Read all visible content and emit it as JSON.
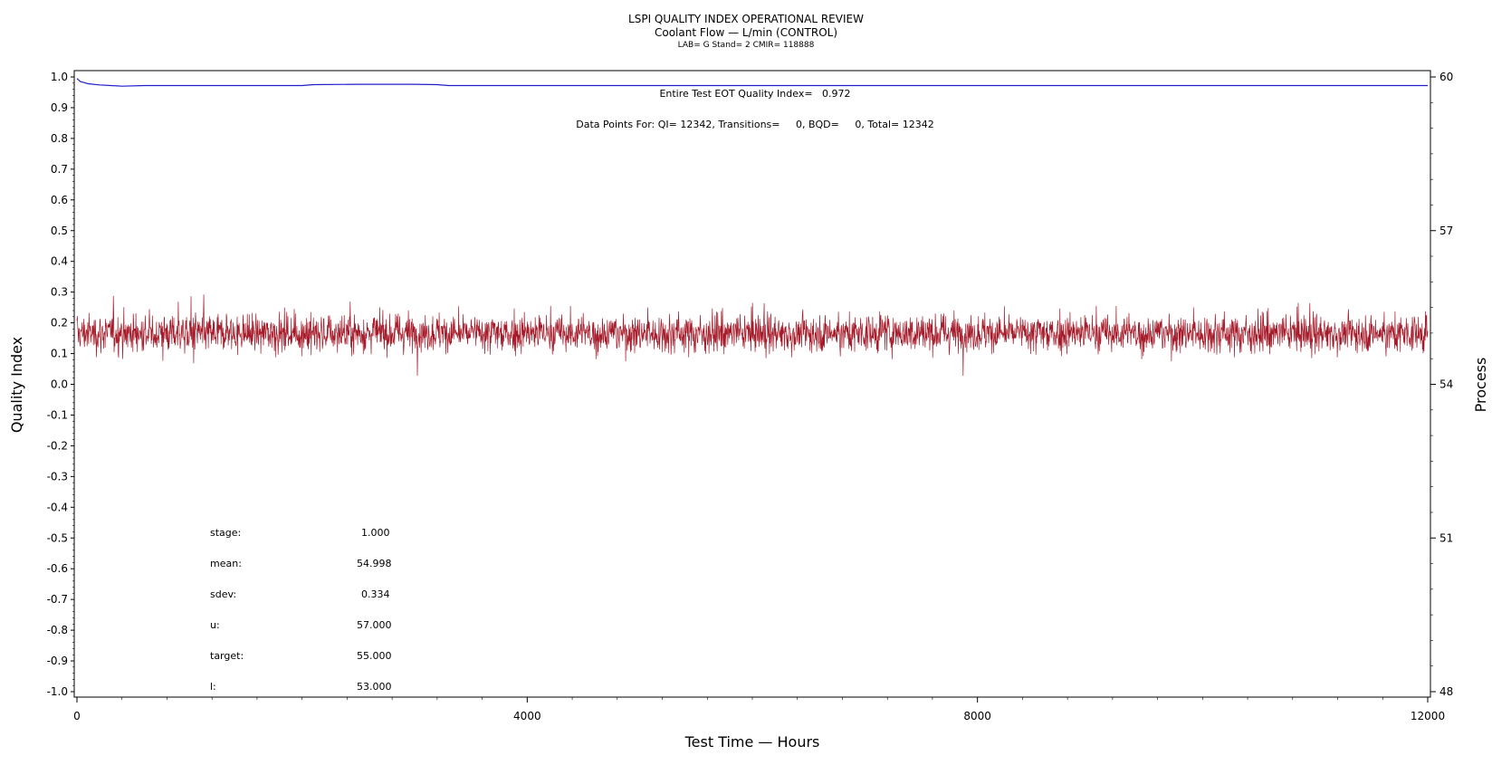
{
  "header": {
    "title": "LSPI QUALITY INDEX OPERATIONAL REVIEW",
    "subtitle": "Coolant Flow — L/min (CONTROL)",
    "subsubtitle": "LAB= G Stand= 2 CMIR= 118888"
  },
  "annotations": {
    "eot": "Entire Test EOT Quality Index=   0.972",
    "datapoints": "Data Points For: QI= 12342, Transitions=     0, BQD=     0, Total= 12342"
  },
  "stats": [
    {
      "label": "stage:",
      "value": "1.000"
    },
    {
      "label": "mean:",
      "value": "54.998"
    },
    {
      "label": "sdev:",
      "value": "0.334"
    },
    {
      "label": "u:",
      "value": "57.000"
    },
    {
      "label": "target:",
      "value": "55.000"
    },
    {
      "label": "l:",
      "value": "53.000"
    }
  ],
  "colors": {
    "qi_line": "#1f1fcc",
    "process_line": "#a51b2a",
    "axis": "#000000",
    "background": "#ffffff"
  },
  "chart_data": {
    "type": "line",
    "xlabel": "Test Time — Hours",
    "ylabel": "Quality Index",
    "y2label": "Process",
    "xlim": [
      0,
      12000
    ],
    "ylim": [
      -1.0,
      1.0
    ],
    "y2lim": [
      48,
      60
    ],
    "xticks": [
      0,
      4000,
      8000,
      12000
    ],
    "xtick_labels": [
      "0",
      "4000",
      "8000",
      "12000"
    ],
    "yticks": [
      1.0,
      0.9,
      0.8,
      0.7,
      0.6,
      0.5,
      0.4,
      0.3,
      0.2,
      0.1,
      0.0,
      -0.1,
      -0.2,
      -0.3,
      -0.4,
      -0.5,
      -0.6,
      -0.7,
      -0.8,
      -0.9,
      -1.0
    ],
    "ytick_labels": [
      "1.0",
      "0.9",
      "0.8",
      "0.7",
      "0.6",
      "0.5",
      "0.4",
      "0.3",
      "0.2",
      "0.1",
      "0.0",
      "-0.1",
      "-0.2",
      "-0.3",
      "-0.4",
      "-0.5",
      "-0.6",
      "-0.7",
      "-0.8",
      "-0.9",
      "-1.0"
    ],
    "y2ticks": [
      60,
      57,
      54,
      51,
      48
    ],
    "y2tick_labels": [
      "60",
      "57",
      "54",
      "51",
      "48"
    ],
    "series": [
      {
        "axis": "left",
        "x": [
          0,
          30,
          60,
          100,
          200,
          300,
          400,
          600,
          1000,
          1500,
          2000,
          2100,
          2500,
          3000,
          3200,
          3300,
          3500,
          4000,
          6000,
          8000,
          10000,
          12000
        ],
        "values": [
          0.995,
          0.985,
          0.982,
          0.978,
          0.974,
          0.972,
          0.97,
          0.972,
          0.972,
          0.972,
          0.972,
          0.975,
          0.976,
          0.976,
          0.975,
          0.972,
          0.972,
          0.972,
          0.972,
          0.972,
          0.972,
          0.972
        ]
      },
      {
        "axis": "right",
        "x_range": [
          0,
          12000
        ],
        "points": 12342,
        "center": 54.998,
        "sdev": 0.334,
        "upper": 55.9,
        "lower": 53.68
      }
    ],
    "grid": false
  }
}
